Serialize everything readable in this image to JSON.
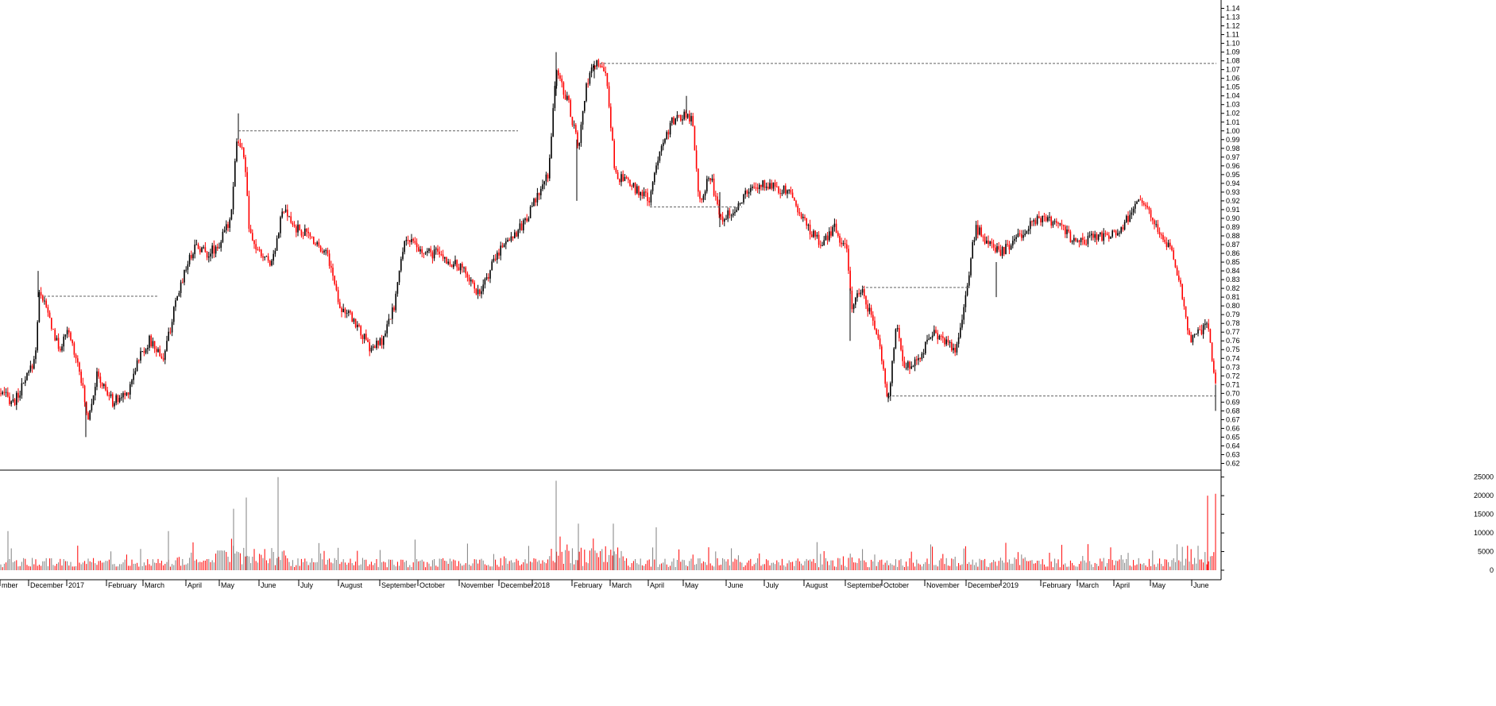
{
  "chart_data": [
    {
      "type": "candlestick",
      "title": "",
      "xlabel": "",
      "ylabel": "",
      "ylim": [
        0.615,
        1.145
      ],
      "y_ticks": [
        "0.62",
        "0.63",
        "0.64",
        "0.65",
        "0.66",
        "0.67",
        "0.68",
        "0.69",
        "0.70",
        "0.71",
        "0.72",
        "0.73",
        "0.74",
        "0.75",
        "0.76",
        "0.77",
        "0.78",
        "0.79",
        "0.80",
        "0.81",
        "0.82",
        "0.83",
        "0.84",
        "0.85",
        "0.86",
        "0.87",
        "0.88",
        "0.89",
        "0.90",
        "0.91",
        "0.92",
        "0.93",
        "0.94",
        "0.95",
        "0.96",
        "0.97",
        "0.98",
        "0.99",
        "1.00",
        "1.01",
        "1.02",
        "1.03",
        "1.04",
        "1.05",
        "1.06",
        "1.07",
        "1.08",
        "1.09",
        "1.10",
        "1.11",
        "1.12",
        "1.13",
        "1.14"
      ],
      "x_labels": [
        "mber",
        "December",
        "2017",
        "February",
        "March",
        "April",
        "May",
        "June",
        "July",
        "August",
        "September",
        "October",
        "November",
        "December",
        "2018",
        "February",
        "March",
        "April",
        "May",
        "June",
        "July",
        "August",
        "September",
        "October",
        "November",
        "December",
        "2019",
        "February",
        "March",
        "April",
        "May",
        "June"
      ],
      "up_color": "#000000",
      "down_color": "#ff0000",
      "price_path": [
        [
          0,
          0.7
        ],
        [
          18,
          0.69
        ],
        [
          30,
          0.71
        ],
        [
          44,
          0.74
        ],
        [
          50,
          0.82
        ],
        [
          64,
          0.78
        ],
        [
          74,
          0.75
        ],
        [
          86,
          0.77
        ],
        [
          100,
          0.73
        ],
        [
          110,
          0.67
        ],
        [
          122,
          0.72
        ],
        [
          142,
          0.69
        ],
        [
          160,
          0.7
        ],
        [
          174,
          0.74
        ],
        [
          188,
          0.76
        ],
        [
          206,
          0.74
        ],
        [
          218,
          0.79
        ],
        [
          232,
          0.84
        ],
        [
          246,
          0.87
        ],
        [
          262,
          0.86
        ],
        [
          276,
          0.87
        ],
        [
          290,
          0.9
        ],
        [
          298,
          0.99
        ],
        [
          308,
          0.97
        ],
        [
          314,
          0.88
        ],
        [
          326,
          0.86
        ],
        [
          342,
          0.85
        ],
        [
          356,
          0.91
        ],
        [
          370,
          0.89
        ],
        [
          390,
          0.88
        ],
        [
          412,
          0.86
        ],
        [
          428,
          0.8
        ],
        [
          448,
          0.78
        ],
        [
          466,
          0.75
        ],
        [
          482,
          0.76
        ],
        [
          496,
          0.8
        ],
        [
          510,
          0.88
        ],
        [
          530,
          0.86
        ],
        [
          550,
          0.86
        ],
        [
          566,
          0.85
        ],
        [
          586,
          0.84
        ],
        [
          604,
          0.81
        ],
        [
          616,
          0.84
        ],
        [
          632,
          0.87
        ],
        [
          656,
          0.89
        ],
        [
          674,
          0.92
        ],
        [
          690,
          0.95
        ],
        [
          700,
          1.07
        ],
        [
          716,
          1.03
        ],
        [
          728,
          0.98
        ],
        [
          738,
          1.05
        ],
        [
          750,
          1.08
        ],
        [
          764,
          1.06
        ],
        [
          774,
          0.95
        ],
        [
          790,
          0.94
        ],
        [
          806,
          0.93
        ],
        [
          818,
          0.92
        ],
        [
          830,
          0.98
        ],
        [
          846,
          1.01
        ],
        [
          864,
          1.02
        ],
        [
          872,
          1.01
        ],
        [
          880,
          0.92
        ],
        [
          894,
          0.95
        ],
        [
          906,
          0.9
        ],
        [
          924,
          0.91
        ],
        [
          940,
          0.93
        ],
        [
          964,
          0.94
        ],
        [
          994,
          0.93
        ],
        [
          1016,
          0.89
        ],
        [
          1034,
          0.87
        ],
        [
          1050,
          0.89
        ],
        [
          1066,
          0.86
        ],
        [
          1072,
          0.8
        ],
        [
          1084,
          0.82
        ],
        [
          1096,
          0.79
        ],
        [
          1108,
          0.75
        ],
        [
          1118,
          0.69
        ],
        [
          1128,
          0.78
        ],
        [
          1138,
          0.73
        ],
        [
          1156,
          0.74
        ],
        [
          1174,
          0.77
        ],
        [
          1190,
          0.76
        ],
        [
          1204,
          0.75
        ],
        [
          1218,
          0.83
        ],
        [
          1228,
          0.89
        ],
        [
          1244,
          0.87
        ],
        [
          1258,
          0.86
        ],
        [
          1274,
          0.87
        ],
        [
          1292,
          0.89
        ],
        [
          1312,
          0.9
        ],
        [
          1334,
          0.89
        ],
        [
          1356,
          0.87
        ],
        [
          1376,
          0.88
        ],
        [
          1396,
          0.88
        ],
        [
          1414,
          0.89
        ],
        [
          1430,
          0.92
        ],
        [
          1446,
          0.91
        ],
        [
          1460,
          0.88
        ],
        [
          1476,
          0.86
        ],
        [
          1484,
          0.83
        ],
        [
          1498,
          0.76
        ],
        [
          1510,
          0.77
        ],
        [
          1520,
          0.78
        ],
        [
          1526,
          0.74
        ],
        [
          1531,
          0.7
        ]
      ],
      "spikes": [
        [
          48,
          0.81,
          0.84
        ],
        [
          108,
          0.65,
          0.69
        ],
        [
          300,
          0.99,
          1.02
        ],
        [
          700,
          1.04,
          1.09
        ],
        [
          726,
          0.92,
          0.99
        ],
        [
          748,
          1.06,
          1.08
        ],
        [
          864,
          1.02,
          1.04
        ],
        [
          906,
          0.89,
          0.93
        ],
        [
          1070,
          0.76,
          0.82
        ],
        [
          1118,
          0.69,
          0.7
        ],
        [
          1254,
          0.81,
          0.85
        ],
        [
          1530,
          0.68,
          0.71
        ]
      ],
      "reference_lines": [
        {
          "y": 0.811,
          "x_from": 55,
          "x_to": 198
        },
        {
          "y": 1.0,
          "x_from": 300,
          "x_to": 652
        },
        {
          "y": 1.077,
          "x_from": 755,
          "x_to": 1531
        },
        {
          "y": 0.913,
          "x_from": 818,
          "x_to": 934
        },
        {
          "y": 0.821,
          "x_from": 1085,
          "x_to": 1220
        },
        {
          "y": 0.697,
          "x_from": 1123,
          "x_to": 1531
        }
      ]
    },
    {
      "type": "bar",
      "title": "",
      "ylim": [
        0,
        26000
      ],
      "y_ticks": [
        "0",
        "5000",
        "10000",
        "15000",
        "20000",
        "25000"
      ],
      "color_scheme": [
        "#ff0000",
        "#808080"
      ],
      "spikes": [
        [
          10,
          10500
        ],
        [
          212,
          10500
        ],
        [
          294,
          16500
        ],
        [
          310,
          19500
        ],
        [
          350,
          25000
        ],
        [
          700,
          24000
        ],
        [
          728,
          12500
        ],
        [
          772,
          12500
        ],
        [
          826,
          11500
        ],
        [
          1520,
          20000
        ],
        [
          1530,
          20500
        ]
      ]
    }
  ]
}
